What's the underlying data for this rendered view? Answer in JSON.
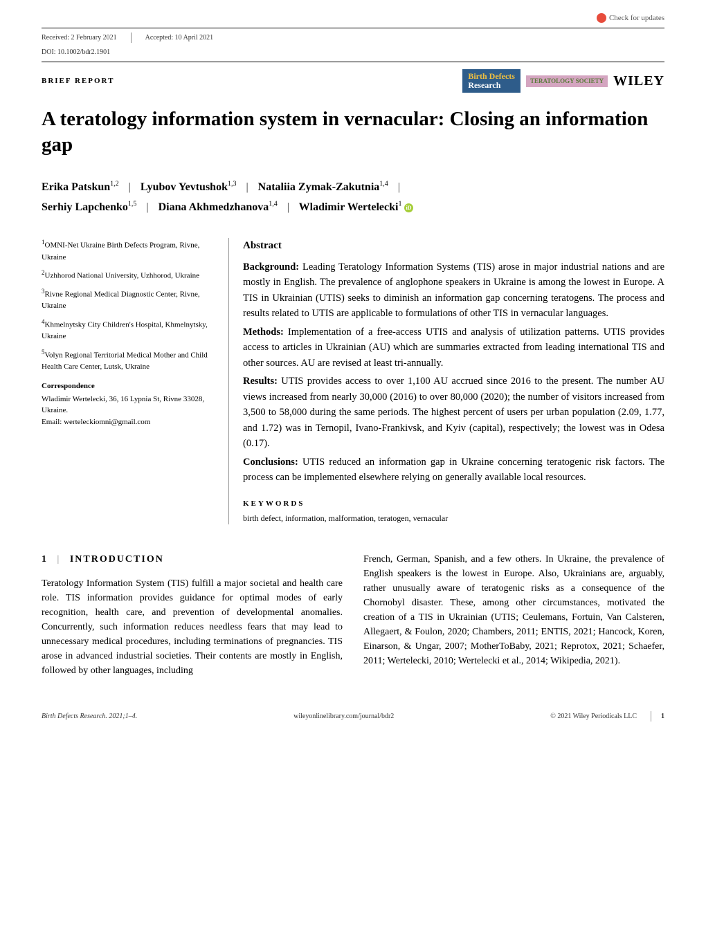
{
  "checkUpdates": "Check for updates",
  "received": "Received: 2 February 2021",
  "accepted": "Accepted: 10 April 2021",
  "doi": "DOI: 10.1002/bdr2.1901",
  "reportType": "BRIEF REPORT",
  "journalBadge": {
    "line1": "Birth Defects",
    "line2": "Research"
  },
  "societyBadge": "TERATOLOGY SOCIETY",
  "publisher": "WILEY",
  "title": "A teratology information system in vernacular: Closing an information gap",
  "authors": [
    {
      "name": "Erika Patskun",
      "aff": "1,2"
    },
    {
      "name": "Lyubov Yevtushok",
      "aff": "1,3"
    },
    {
      "name": "Nataliia Zymak-Zakutnia",
      "aff": "1,4"
    },
    {
      "name": "Serhiy Lapchenko",
      "aff": "1,5"
    },
    {
      "name": "Diana Akhmedzhanova",
      "aff": "1,4"
    },
    {
      "name": "Wladimir Wertelecki",
      "aff": "1",
      "orcid": true
    }
  ],
  "affiliations": [
    {
      "num": "1",
      "text": "OMNI-Net Ukraine Birth Defects Program, Rivne, Ukraine"
    },
    {
      "num": "2",
      "text": "Uzhhorod National University, Uzhhorod, Ukraine"
    },
    {
      "num": "3",
      "text": "Rivne Regional Medical Diagnostic Center, Rivne, Ukraine"
    },
    {
      "num": "4",
      "text": "Khmelnytsky City Children's Hospital, Khmelnytsky, Ukraine"
    },
    {
      "num": "5",
      "text": "Volyn Regional Territorial Medical Mother and Child Health Care Center, Lutsk, Ukraine"
    }
  ],
  "correspondence": {
    "label": "Correspondence",
    "text": "Wladimir Wertelecki, 36, 16 Lypnia St, Rivne 33028, Ukraine.",
    "email": "Email: werteleckiomni@gmail.com"
  },
  "abstract": {
    "label": "Abstract",
    "background": {
      "label": "Background:",
      "text": "Leading Teratology Information Systems (TIS) arose in major industrial nations and are mostly in English. The prevalence of anglophone speakers in Ukraine is among the lowest in Europe. A TIS in Ukrainian (UTIS) seeks to diminish an information gap concerning teratogens. The process and results related to UTIS are applicable to formulations of other TIS in vernacular languages."
    },
    "methods": {
      "label": "Methods:",
      "text": "Implementation of a free-access UTIS and analysis of utilization patterns. UTIS provides access to articles in Ukrainian (AU) which are summaries extracted from leading international TIS and other sources. AU are revised at least tri-annually."
    },
    "results": {
      "label": "Results:",
      "text": "UTIS provides access to over 1,100 AU accrued since 2016 to the present. The number AU views increased from nearly 30,000 (2016) to over 80,000 (2020); the number of visitors increased from 3,500 to 58,000 during the same periods. The highest percent of users per urban population (2.09, 1.77, and 1.72) was in Ternopil, Ivano-Frankivsk, and Kyiv (capital), respectively; the lowest was in Odesa (0.17)."
    },
    "conclusions": {
      "label": "Conclusions:",
      "text": "UTIS reduced an information gap in Ukraine concerning teratogenic risk factors. The process can be implemented elsewhere relying on generally available local resources."
    }
  },
  "keywords": {
    "label": "KEYWORDS",
    "text": "birth defect, information, malformation, teratogen, vernacular"
  },
  "introduction": {
    "num": "1",
    "heading": "INTRODUCTION",
    "col1": "Teratology Information System (TIS) fulfill a major societal and health care role. TIS information provides guidance for optimal modes of early recognition, health care, and prevention of developmental anomalies. Concurrently, such information reduces needless fears that may lead to unnecessary medical procedures, including terminations of pregnancies. TIS arose in advanced industrial societies. Their contents are mostly in English, followed by other languages, including",
    "col2": "French, German, Spanish, and a few others. In Ukraine, the prevalence of English speakers is the lowest in Europe. Also, Ukrainians are, arguably, rather unusually aware of teratogenic risks as a consequence of the Chornobyl disaster. These, among other circumstances, motivated the creation of a TIS in Ukrainian (UTIS; Ceulemans, Fortuin, Van Calsteren, Allegaert, & Foulon, 2020; Chambers, 2011; ENTIS, 2021; Hancock, Koren, Einarson, & Ungar, 2007; MotherToBaby, 2021; Reprotox, 2021; Schaefer, 2011; Wertelecki, 2010; Wertelecki et al., 2014; Wikipedia, 2021)."
  },
  "footer": {
    "left": "Birth Defects Research. 2021;1–4.",
    "center": "wileyonlinelibrary.com/journal/bdr2",
    "copyright": "© 2021 Wiley Periodicals LLC",
    "page": "1"
  }
}
